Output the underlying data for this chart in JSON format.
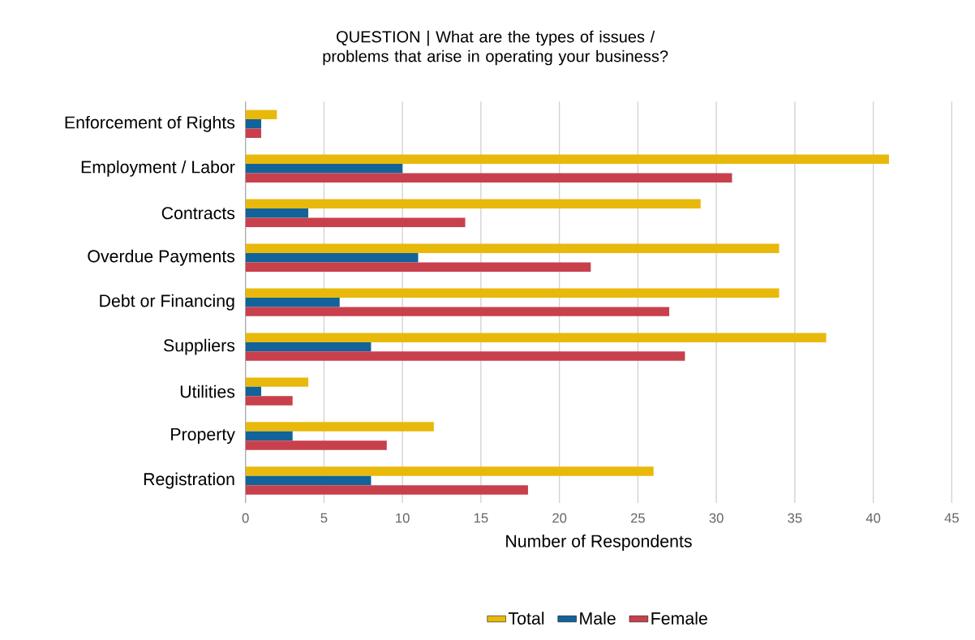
{
  "chart_data": {
    "type": "bar",
    "orientation": "horizontal",
    "title": "QUESTION   |   What are the types of issues / problems that arise in operating your business?",
    "xlabel": "Number of Respondents",
    "categories": [
      "Enforcement of Rights",
      "Employment / Labor",
      "Contracts",
      "Overdue Payments",
      "Debt or Financing",
      "Suppliers",
      "Utilities",
      "Property",
      "Registration"
    ],
    "series": [
      {
        "name": "Total",
        "color": "#e8b90b",
        "values": [
          2,
          41,
          29,
          34,
          34,
          37,
          4,
          12,
          26
        ]
      },
      {
        "name": "Male",
        "color": "#11639a",
        "values": [
          1,
          10,
          4,
          11,
          6,
          8,
          1,
          3,
          8
        ]
      },
      {
        "name": "Female",
        "color": "#c8404c",
        "values": [
          1,
          31,
          14,
          22,
          27,
          28,
          3,
          9,
          18
        ]
      }
    ],
    "xlim": [
      0,
      45
    ],
    "xticks": [
      0,
      5,
      10,
      15,
      20,
      25,
      30,
      35,
      40,
      45
    ],
    "grid": "x",
    "legend": "bottom"
  }
}
